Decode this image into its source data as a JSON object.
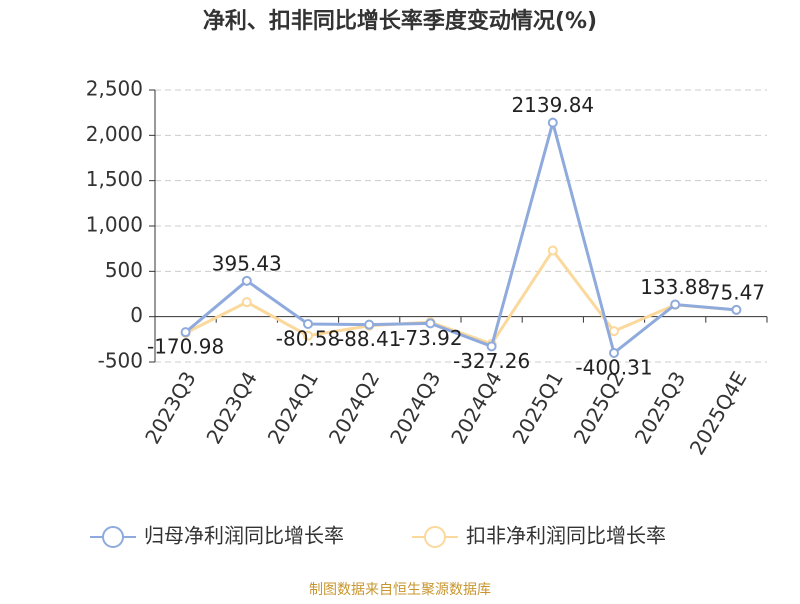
{
  "chart_data": {
    "type": "line",
    "title": "净利、扣非同比增长率季度变动情况(%)",
    "categories": [
      "2023Q3",
      "2023Q4",
      "2024Q1",
      "2024Q2",
      "2024Q3",
      "2024Q4",
      "2025Q1",
      "2025Q2",
      "2025Q3",
      "2025Q4E"
    ],
    "series": [
      {
        "name": "归母净利润同比增长率",
        "color": "#8faadc",
        "values": [
          -170.98,
          395.43,
          -80.58,
          -88.41,
          -73.92,
          -327.26,
          2139.84,
          -400.31,
          133.88,
          75.47
        ]
      },
      {
        "name": "扣非净利润同比增长率",
        "color": "#fbd89b",
        "values": [
          -180,
          160,
          -210,
          -100,
          -60,
          -300,
          730,
          -160,
          130,
          75
        ]
      }
    ],
    "ylim": [
      -500,
      2500
    ],
    "yticks": [
      -500,
      0,
      500,
      {
        "value": 1000,
        "label": "1,000"
      },
      {
        "value": 1500,
        "label": "1,500"
      },
      {
        "value": 2000,
        "label": "2,000"
      },
      {
        "value": 2500,
        "label": "2,500"
      }
    ],
    "grid": true,
    "source": "制图数据来自恒生聚源数据库"
  }
}
